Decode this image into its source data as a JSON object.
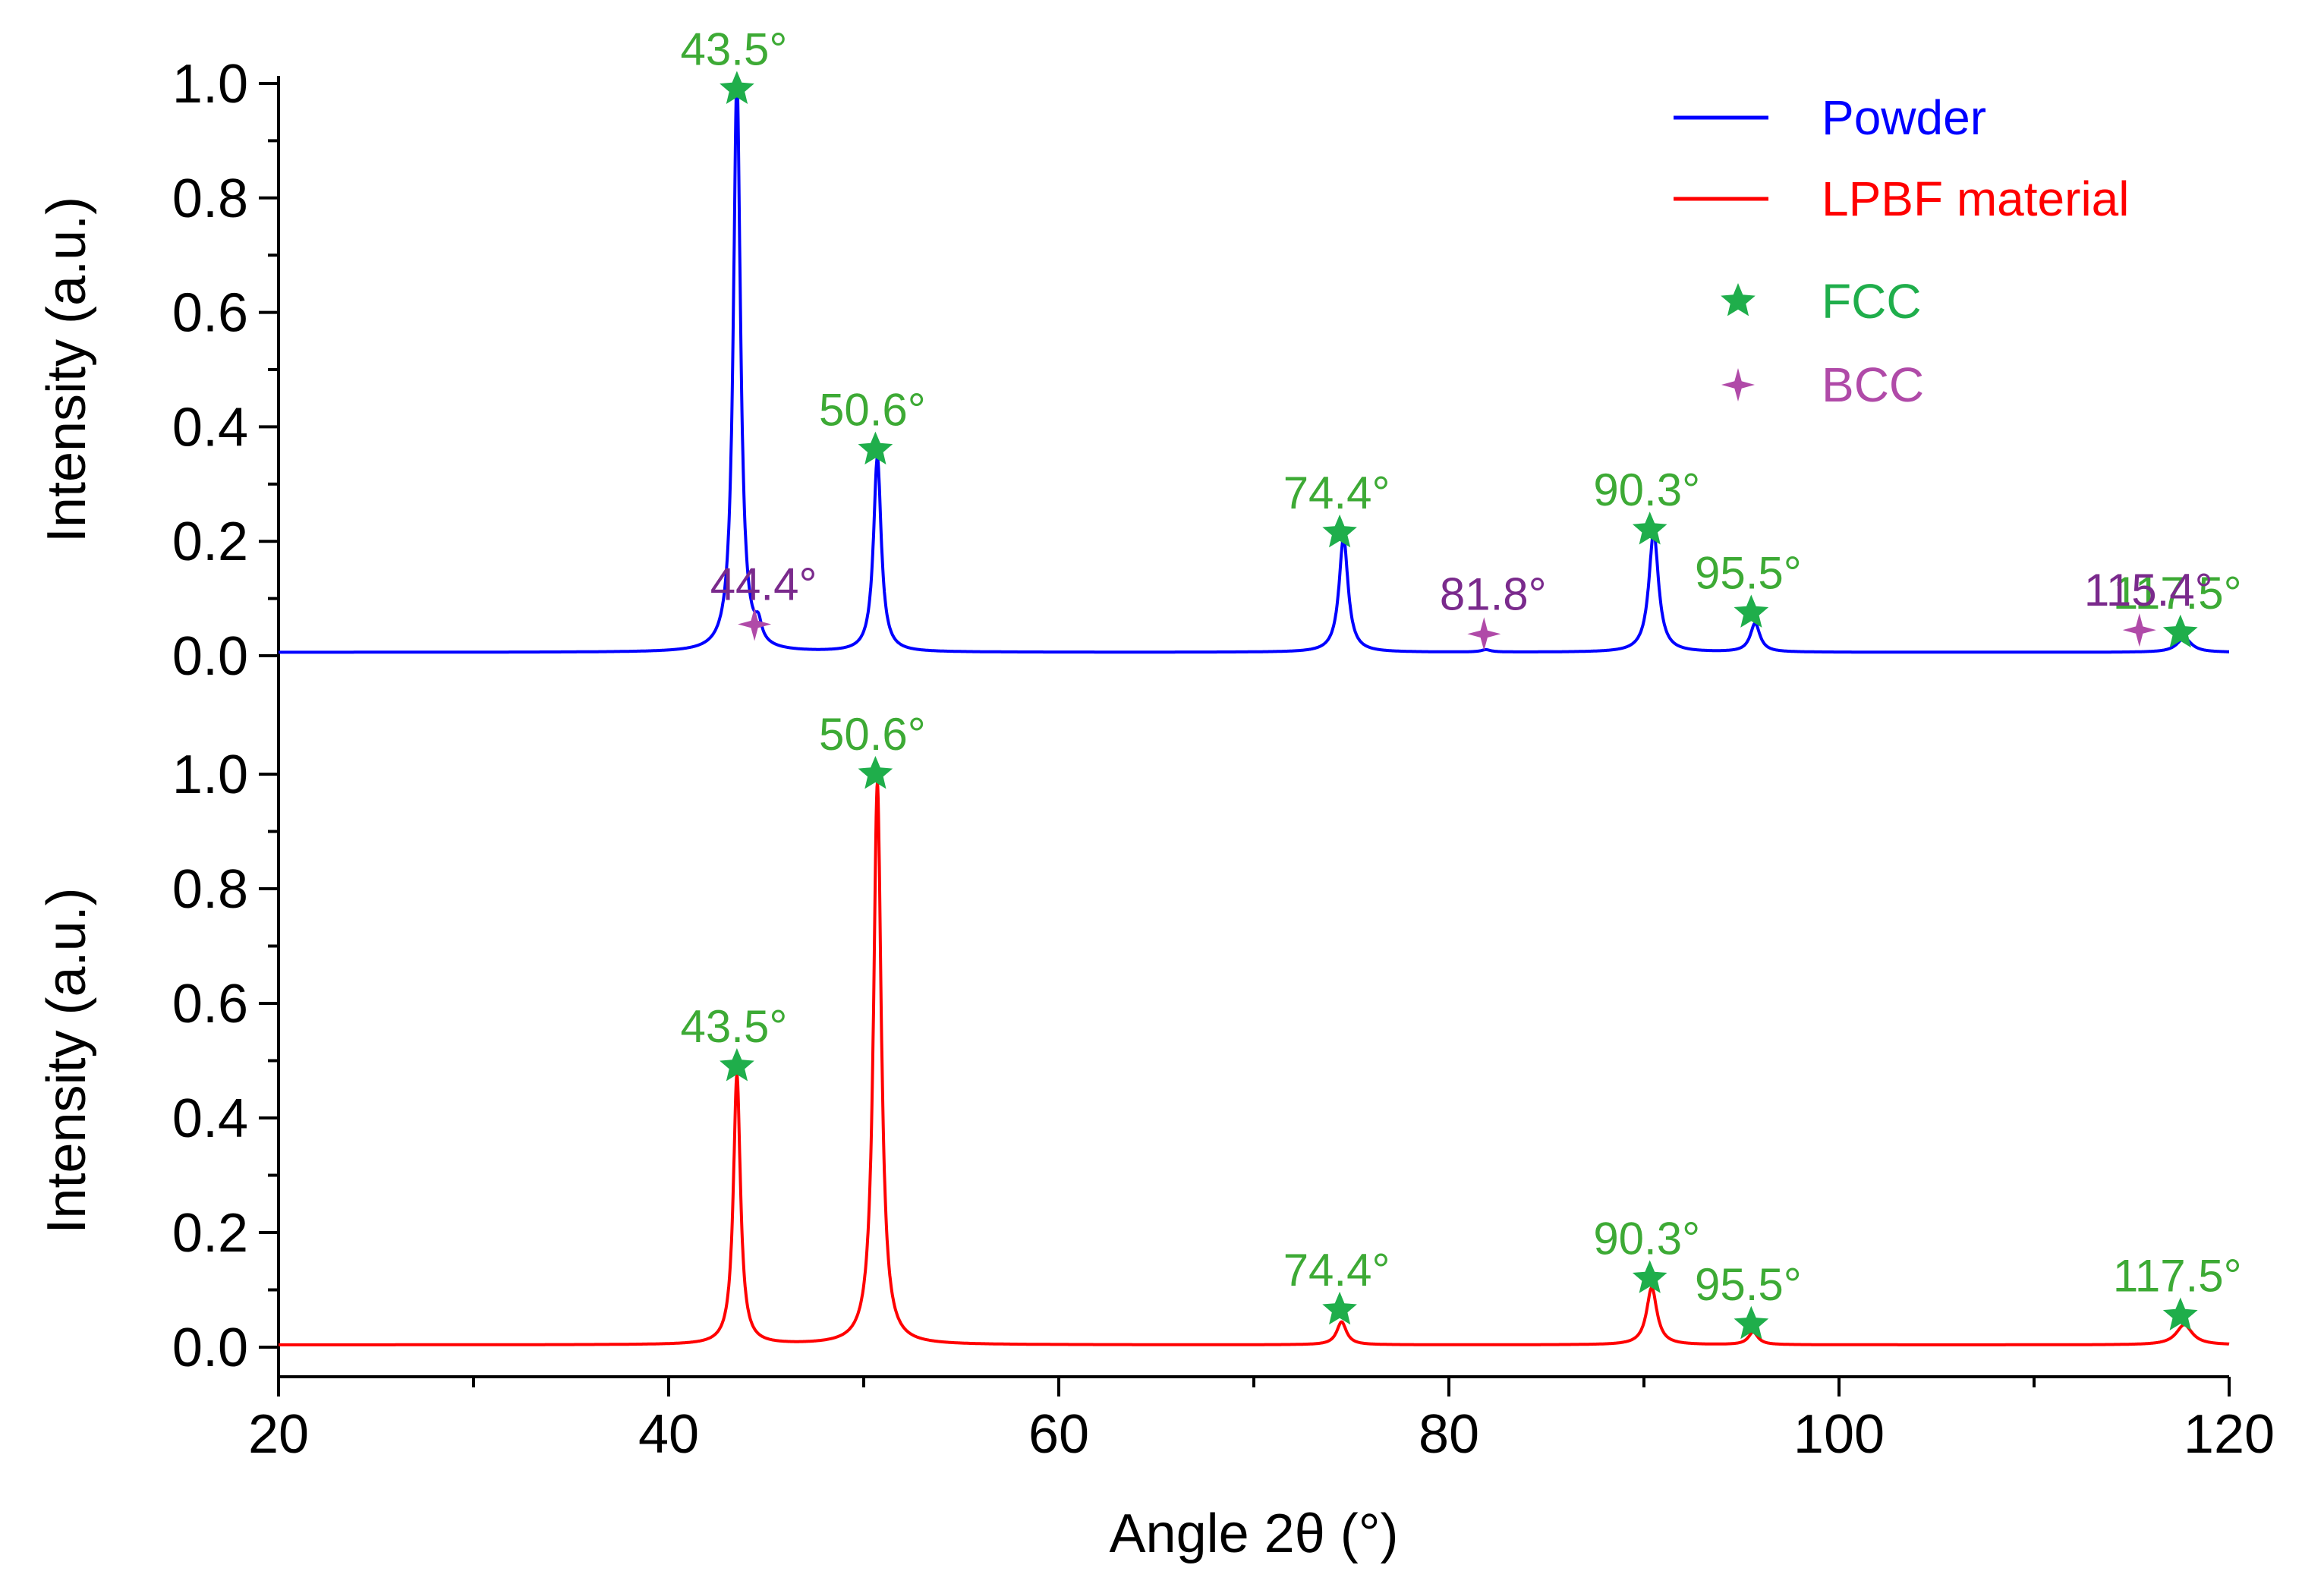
{
  "colors": {
    "powder": "#0000ff",
    "lpbf": "#ff0000",
    "fcc": "#1fae4b",
    "bcc": "#b04aa8",
    "fcc_label": "#3daa35",
    "bcc_label": "#7a2a8c",
    "axis": "#000000"
  },
  "chart_data": {
    "type": "line",
    "x_label": "Angle 2θ (°)",
    "y_label": "Intensity (a.u.)",
    "x_range": [
      20,
      120
    ],
    "x_ticks": [
      20,
      40,
      60,
      80,
      100,
      120
    ],
    "y_range": [
      -0.05,
      1.0
    ],
    "y_ticks": [
      0.0,
      0.2,
      0.4,
      0.6,
      0.8,
      1.0
    ],
    "legend": [
      {
        "label": "Powder",
        "kind": "line",
        "color": "#0000ff"
      },
      {
        "label": "LPBF material",
        "kind": "line",
        "color": "#ff0000"
      },
      {
        "label": "FCC",
        "kind": "star",
        "color": "#1fae4b"
      },
      {
        "label": "BCC",
        "kind": "sparkle",
        "color": "#b04aa8"
      }
    ],
    "panels": [
      {
        "series": "Powder",
        "color": "#0000ff",
        "baseline": 0.006,
        "peaks": [
          {
            "x": 43.5,
            "y": 1.0,
            "w": 0.22
          },
          {
            "x": 44.6,
            "y": 0.03,
            "w": 0.2
          },
          {
            "x": 50.7,
            "y": 0.34,
            "w": 0.24
          },
          {
            "x": 74.6,
            "y": 0.2,
            "w": 0.28
          },
          {
            "x": 81.9,
            "y": 0.004,
            "w": 0.3
          },
          {
            "x": 90.5,
            "y": 0.21,
            "w": 0.3
          },
          {
            "x": 95.7,
            "y": 0.05,
            "w": 0.3
          },
          {
            "x": 117.7,
            "y": 0.025,
            "w": 0.45
          }
        ],
        "markers": [
          {
            "phase": "FCC",
            "x": 43.5,
            "y": 0.99,
            "label": "43.5°"
          },
          {
            "phase": "FCC",
            "x": 50.6,
            "y": 0.36,
            "label": "50.6°"
          },
          {
            "phase": "FCC",
            "x": 74.4,
            "y": 0.215,
            "label": "74.4°"
          },
          {
            "phase": "FCC",
            "x": 90.3,
            "y": 0.22,
            "label": "90.3°"
          },
          {
            "phase": "FCC",
            "x": 95.5,
            "y": 0.075,
            "label": "95.5°"
          },
          {
            "phase": "FCC",
            "x": 117.5,
            "y": 0.04,
            "label": "117.5°"
          },
          {
            "phase": "BCC",
            "x": 44.4,
            "y": 0.055,
            "label": "44.4°"
          },
          {
            "phase": "BCC",
            "x": 81.8,
            "y": 0.038,
            "label": "81.8°"
          },
          {
            "phase": "BCC",
            "x": 115.4,
            "y": 0.045,
            "label": "115.4°"
          }
        ]
      },
      {
        "series": "LPBF material",
        "color": "#ff0000",
        "baseline": 0.004,
        "peaks": [
          {
            "x": 43.5,
            "y": 0.47,
            "w": 0.22
          },
          {
            "x": 50.7,
            "y": 0.98,
            "w": 0.24
          },
          {
            "x": 74.5,
            "y": 0.04,
            "w": 0.3
          },
          {
            "x": 90.4,
            "y": 0.1,
            "w": 0.32
          },
          {
            "x": 95.6,
            "y": 0.022,
            "w": 0.3
          },
          {
            "x": 117.7,
            "y": 0.035,
            "w": 0.5
          }
        ],
        "markers": [
          {
            "phase": "FCC",
            "x": 43.5,
            "y": 0.49,
            "label": "43.5°"
          },
          {
            "phase": "FCC",
            "x": 50.6,
            "y": 1.0,
            "label": "50.6°"
          },
          {
            "phase": "FCC",
            "x": 74.4,
            "y": 0.065,
            "label": "74.4°"
          },
          {
            "phase": "FCC",
            "x": 90.3,
            "y": 0.12,
            "label": "90.3°"
          },
          {
            "phase": "FCC",
            "x": 95.5,
            "y": 0.04,
            "label": "95.5°"
          },
          {
            "phase": "FCC",
            "x": 117.5,
            "y": 0.055,
            "label": "117.5°"
          }
        ]
      }
    ]
  }
}
